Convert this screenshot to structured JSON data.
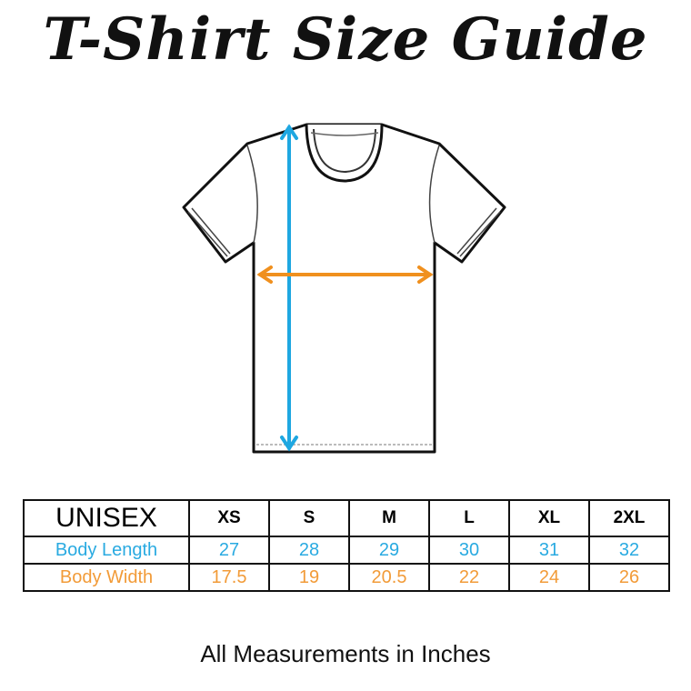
{
  "title": "T-Shirt Size Guide",
  "colors": {
    "length": "#1ea7e1",
    "width": "#f0901e",
    "length_text": "#29aae1",
    "width_text": "#f29b38"
  },
  "table": {
    "header": "UNISEX",
    "sizes": [
      "XS",
      "S",
      "M",
      "L",
      "XL",
      "2XL"
    ],
    "rows": [
      {
        "label": "Body Length",
        "values": [
          "27",
          "28",
          "29",
          "30",
          "31",
          "32"
        ]
      },
      {
        "label": "Body Width",
        "values": [
          "17.5",
          "19",
          "20.5",
          "22",
          "24",
          "26"
        ]
      }
    ]
  },
  "footer": "All Measurements in Inches"
}
